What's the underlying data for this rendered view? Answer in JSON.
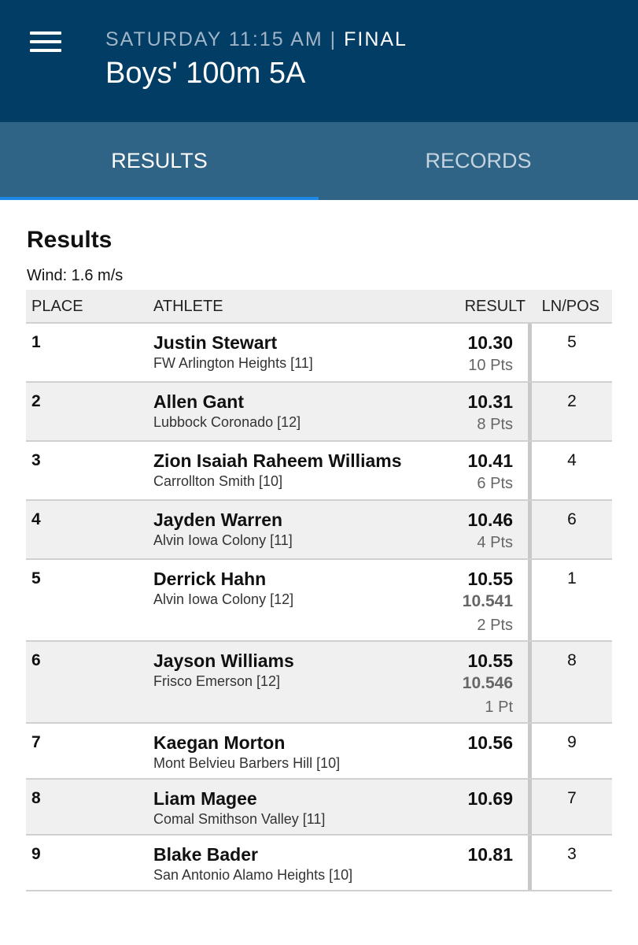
{
  "header": {
    "day_time": "SATURDAY 11:15 AM",
    "separator": "|",
    "status": "FINAL",
    "title": "Boys' 100m 5A",
    "menu_icon": "hamburger-menu-icon"
  },
  "tabs": [
    {
      "label": "RESULTS",
      "active": true
    },
    {
      "label": "RECORDS",
      "active": false
    }
  ],
  "section": {
    "title": "Results",
    "wind": "Wind: 1.6 m/s"
  },
  "table": {
    "columns": {
      "place": "PLACE",
      "athlete": "ATHLETE",
      "result": "RESULT",
      "lnpos": "LN/POS"
    },
    "rows": [
      {
        "place": "1",
        "name": "Justin Stewart",
        "team": "FW Arlington Heights [11]",
        "result": "10.30",
        "precise": "",
        "points": "10 Pts",
        "lane": "5"
      },
      {
        "place": "2",
        "name": "Allen Gant",
        "team": "Lubbock Coronado [12]",
        "result": "10.31",
        "precise": "",
        "points": "8 Pts",
        "lane": "2"
      },
      {
        "place": "3",
        "name": "Zion Isaiah Raheem Williams",
        "team": "Carrollton Smith [10]",
        "result": "10.41",
        "precise": "",
        "points": "6 Pts",
        "lane": "4"
      },
      {
        "place": "4",
        "name": "Jayden Warren",
        "team": "Alvin Iowa Colony [11]",
        "result": "10.46",
        "precise": "",
        "points": "4 Pts",
        "lane": "6"
      },
      {
        "place": "5",
        "name": "Derrick Hahn",
        "team": "Alvin Iowa Colony [12]",
        "result": "10.55",
        "precise": "10.541",
        "points": "2 Pts",
        "lane": "1"
      },
      {
        "place": "6",
        "name": "Jayson Williams",
        "team": "Frisco Emerson [12]",
        "result": "10.55",
        "precise": "10.546",
        "points": "1 Pt",
        "lane": "8"
      },
      {
        "place": "7",
        "name": "Kaegan Morton",
        "team": "Mont Belvieu Barbers Hill [10]",
        "result": "10.56",
        "precise": "",
        "points": "",
        "lane": "9"
      },
      {
        "place": "8",
        "name": "Liam Magee",
        "team": "Comal Smithson Valley [11]",
        "result": "10.69",
        "precise": "",
        "points": "",
        "lane": "7"
      },
      {
        "place": "9",
        "name": "Blake Bader",
        "team": "San Antonio Alamo Heights [10]",
        "result": "10.81",
        "precise": "",
        "points": "",
        "lane": "3"
      }
    ]
  },
  "colors": {
    "appbar": "#023d66",
    "tabbar": "#2f6487",
    "tab_indicator": "#1e88e5"
  }
}
